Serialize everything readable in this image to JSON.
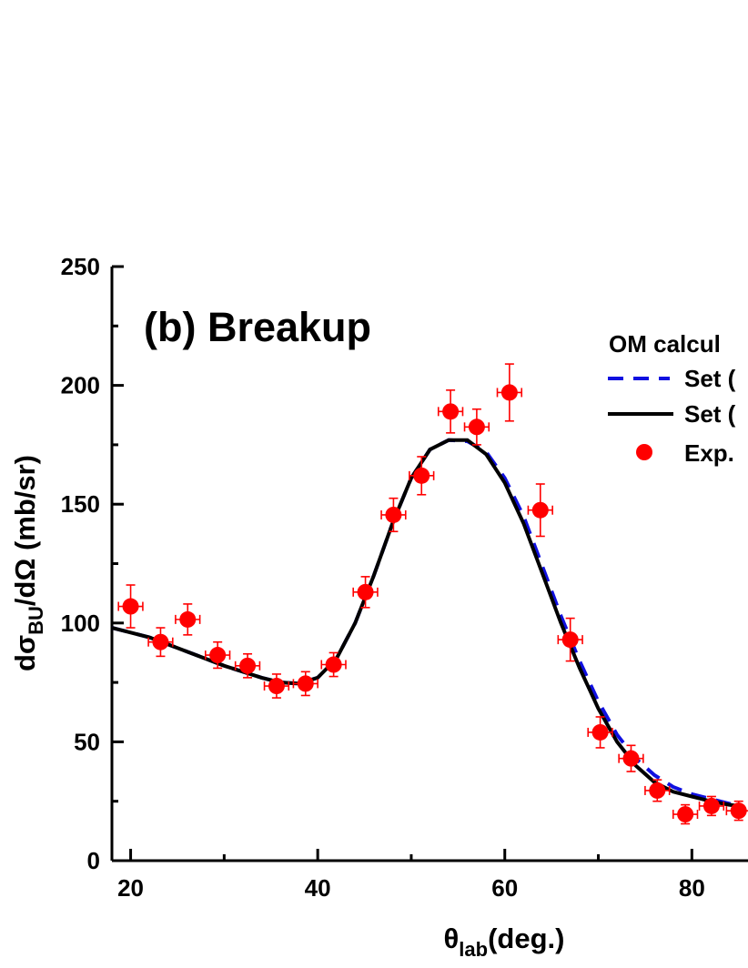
{
  "chart_data": {
    "type": "scatter",
    "panel_label": "(b) Breakup",
    "xlabel": {
      "main": "θ",
      "sub": "lab",
      "rest": "(deg.)"
    },
    "ylabel": {
      "a": "dσ",
      "sub": "BU",
      "b": "/dΩ (mb/sr)"
    },
    "xlim": [
      18,
      85
    ],
    "ylim": [
      0,
      250
    ],
    "xticks": [
      20,
      40,
      60,
      80
    ],
    "yticks": [
      0,
      50,
      100,
      150,
      200,
      250
    ],
    "grid": false,
    "legend": {
      "position": "top-right",
      "title": "OM calcul",
      "entries": [
        "Set (",
        "Set (",
        "Exp."
      ]
    },
    "colors": {
      "dashed": "#1010e0",
      "solid": "#000000",
      "points": "#ff0000"
    },
    "series": [
      {
        "style": "dashed",
        "x": [
          18,
          22,
          26,
          30,
          34,
          36,
          38,
          40,
          42,
          44,
          46,
          48,
          50,
          52,
          54,
          56,
          58,
          60,
          62,
          64,
          66,
          68,
          70,
          72,
          74,
          76,
          78,
          80,
          82,
          84,
          85
        ],
        "values": [
          98,
          94,
          88,
          82,
          77,
          75,
          74.5,
          77,
          85,
          100,
          120,
          142,
          161,
          173,
          177,
          176.5,
          172,
          161,
          145,
          124,
          103,
          84,
          67,
          53,
          43,
          36,
          31,
          28,
          26,
          24,
          23
        ]
      },
      {
        "style": "solid",
        "x": [
          18,
          22,
          26,
          30,
          34,
          36,
          38,
          40,
          42,
          44,
          46,
          48,
          50,
          52,
          54,
          56,
          58,
          60,
          62,
          64,
          66,
          68,
          70,
          72,
          74,
          76,
          78,
          80,
          82,
          84,
          85
        ],
        "values": [
          98,
          94,
          88,
          82,
          77,
          75,
          74.5,
          77,
          85,
          100,
          120,
          142,
          161,
          173,
          177,
          177,
          171,
          159,
          142,
          121,
          100,
          81,
          64,
          50,
          40,
          33,
          29,
          27,
          25,
          23.5,
          23
        ]
      }
    ],
    "points": {
      "x": [
        20.0,
        23.2,
        26.1,
        29.3,
        32.5,
        35.6,
        38.7,
        41.7,
        45.1,
        48.1,
        51.1,
        54.2,
        57.0,
        60.5,
        63.8,
        67.0,
        70.2,
        73.5,
        76.3,
        79.3,
        82.1,
        85.0
      ],
      "values": [
        107,
        92,
        101.5,
        86.5,
        82,
        73.5,
        74.5,
        82.5,
        113,
        145.5,
        162,
        189,
        182.5,
        197,
        147.5,
        93,
        54,
        43,
        29.5,
        19.5,
        23,
        21
      ],
      "xerr": [
        1.3,
        1.3,
        1.3,
        1.3,
        1.3,
        1.3,
        1.3,
        1.3,
        1.3,
        1.3,
        1.3,
        1.3,
        1.3,
        1.3,
        1.3,
        1.3,
        1.3,
        1.3,
        1.3,
        1.3,
        1.3,
        1.3
      ],
      "yerr": [
        9,
        6,
        6.5,
        5.5,
        5,
        5,
        5,
        5,
        6.5,
        7,
        8,
        9,
        7.5,
        12,
        11,
        9,
        6.5,
        5.5,
        4.5,
        4,
        4,
        4
      ]
    }
  }
}
